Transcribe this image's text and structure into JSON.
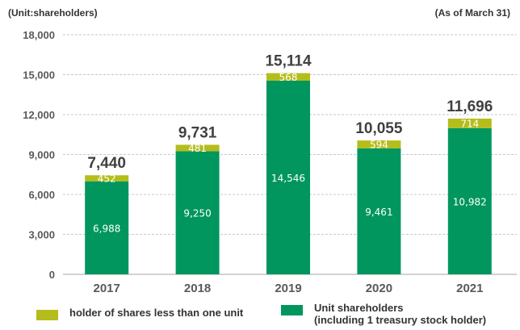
{
  "header": {
    "unit_note": "(Unit:shareholders)",
    "asof_note": "(As of March 31)"
  },
  "colors": {
    "unit_shareholders": "#00965e",
    "odd_lot_holders": "#b5bd1c",
    "gridline": "#c8c8c8",
    "axis_text": "#595959",
    "total_text": "#404040"
  },
  "legend": [
    {
      "key": "odd_lot",
      "label": "holder of shares less than one unit"
    },
    {
      "key": "unit",
      "label": "Unit shareholders\n(including 1 treasury stock holder)"
    }
  ],
  "chart_data": {
    "type": "bar",
    "stacked": true,
    "categories": [
      "2017",
      "2018",
      "2019",
      "2020",
      "2021"
    ],
    "series": [
      {
        "name": "Unit shareholders (including 1 treasury stock holder)",
        "values": [
          6988,
          9250,
          14546,
          9461,
          10982
        ]
      },
      {
        "name": "holder of shares less than one unit",
        "values": [
          452,
          481,
          568,
          594,
          714
        ]
      }
    ],
    "totals": [
      7440,
      9731,
      15114,
      10055,
      11696
    ],
    "segment_labels": {
      "unit": [
        "6,988",
        "9,250",
        "14,546",
        "9,461",
        "10,982"
      ],
      "odd_lot": [
        "452",
        "481",
        "568",
        "594",
        "714"
      ]
    },
    "total_labels": [
      "7,440",
      "9,731",
      "15,114",
      "10,055",
      "11,696"
    ],
    "yticks": [
      0,
      3000,
      6000,
      9000,
      12000,
      15000,
      18000
    ],
    "ytick_labels": [
      "0",
      "3,000",
      "6,000",
      "9,000",
      "12,000",
      "15,000",
      "18,000"
    ],
    "ylim": [
      0,
      18000
    ],
    "grid": true,
    "legend_position": "bottom"
  }
}
